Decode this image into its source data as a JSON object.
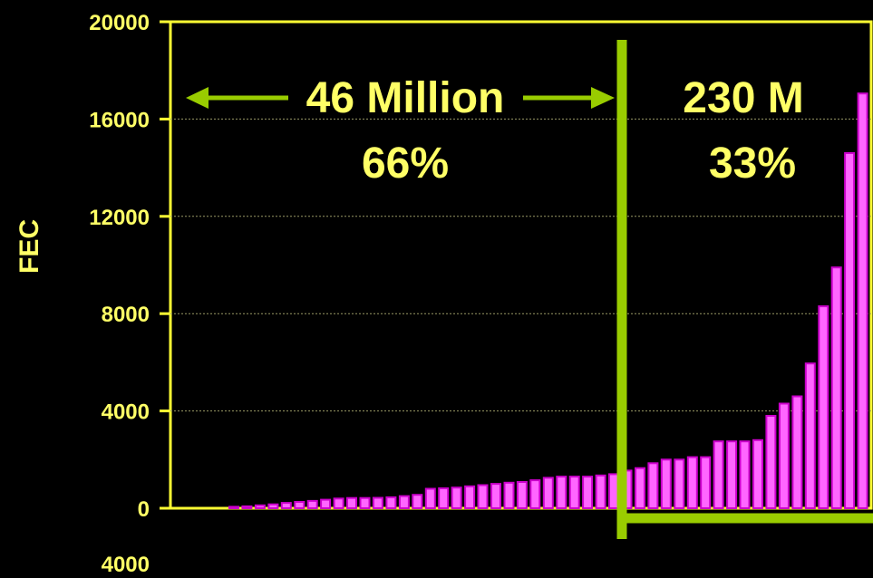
{
  "chart_data": {
    "type": "bar",
    "ylabel": "FEC",
    "ylim": [
      0,
      20000
    ],
    "yticks": [
      "20000",
      "16000",
      "12000",
      "8000",
      "4000",
      "0"
    ],
    "below_axis_label": "4000",
    "grid": true,
    "values": [
      60,
      80,
      120,
      160,
      220,
      260,
      300,
      350,
      400,
      420,
      420,
      430,
      450,
      500,
      550,
      800,
      820,
      850,
      900,
      950,
      1000,
      1050,
      1080,
      1150,
      1250,
      1300,
      1300,
      1300,
      1350,
      1400,
      1550,
      1650,
      1850,
      2000,
      2000,
      2100,
      2100,
      2750,
      2750,
      2750,
      2800,
      3800,
      4300,
      4600,
      5950,
      8300,
      9900,
      14600,
      17050
    ],
    "bar_color": "#ff66ff",
    "bar_edge_color": "#cc00cc",
    "divider_color": "#99cc00",
    "annotations": {
      "left_top": "46 Million",
      "left_bottom": "66%",
      "right_top": "230 M",
      "right_bottom": "33%"
    }
  }
}
